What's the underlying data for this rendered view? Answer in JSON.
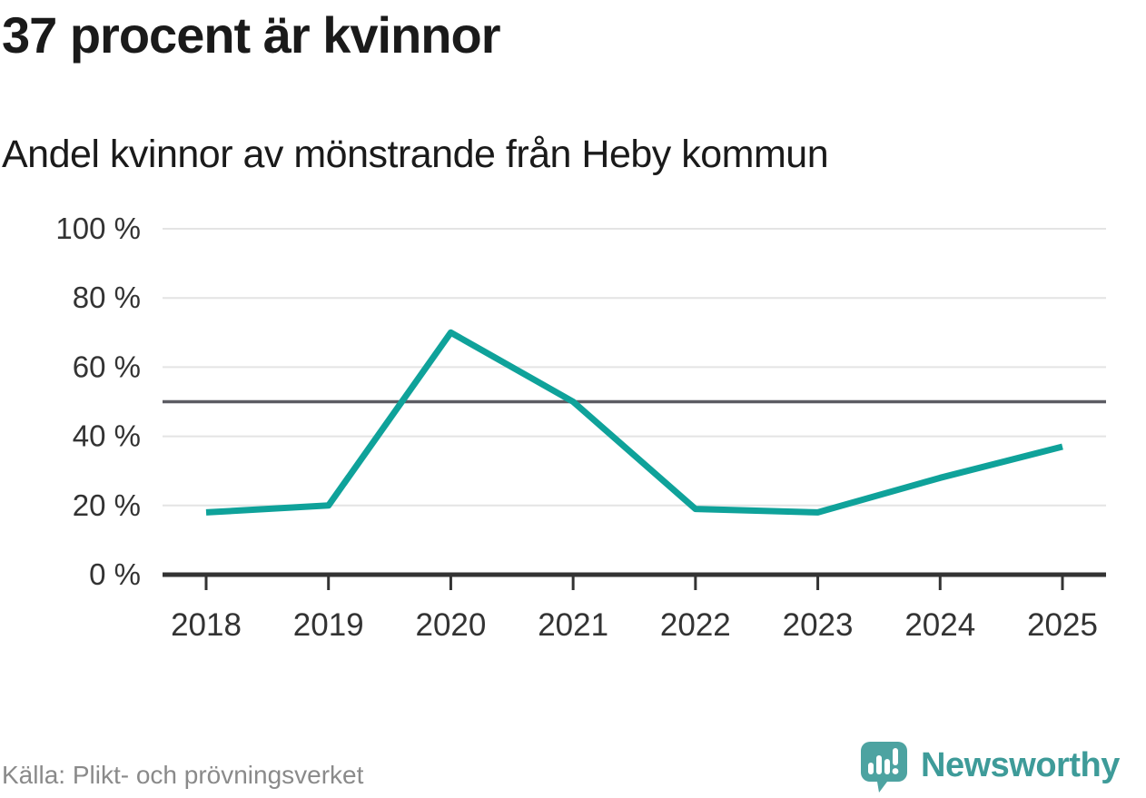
{
  "colors": {
    "line": "#0fa29a",
    "grid": "#e4e4e4",
    "reference": "#5c5c63",
    "axis": "#333333",
    "tick_text": "#333333",
    "title_text": "#1a1a1a",
    "muted_text": "#8a8a8a",
    "brand": "#4da3a1",
    "brand_text": "#3e9b99"
  },
  "chart_data": {
    "type": "line",
    "title": "37 procent är kvinnor",
    "subtitle": "Andel kvinnor av mönstrande från Heby kommun",
    "x_categories": [
      "2018",
      "2019",
      "2020",
      "2021",
      "2022",
      "2023",
      "2024",
      "2025"
    ],
    "series": [
      {
        "name": "Andel kvinnor av mönstrande",
        "values": [
          18,
          20,
          70,
          50,
          19,
          18,
          28,
          37
        ]
      }
    ],
    "unit": "%",
    "ylim": [
      0,
      100
    ],
    "ytick_values": [
      0,
      20,
      40,
      60,
      80,
      100
    ],
    "ytick_labels": [
      "0 %",
      "20 %",
      "40 %",
      "60 %",
      "80 %",
      "100 %"
    ],
    "reference_line": 50,
    "grid": true,
    "legend": "none",
    "xlabel": "",
    "ylabel": "",
    "source": "Källa: Plikt- och prövningsverket",
    "brand": "Newsworthy"
  }
}
